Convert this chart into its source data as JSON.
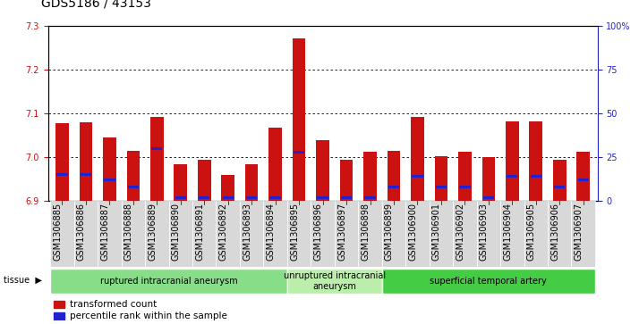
{
  "title": "GDS5186 / 43153",
  "samples": [
    "GSM1306885",
    "GSM1306886",
    "GSM1306887",
    "GSM1306888",
    "GSM1306889",
    "GSM1306890",
    "GSM1306891",
    "GSM1306892",
    "GSM1306893",
    "GSM1306894",
    "GSM1306895",
    "GSM1306896",
    "GSM1306897",
    "GSM1306898",
    "GSM1306899",
    "GSM1306900",
    "GSM1306901",
    "GSM1306902",
    "GSM1306903",
    "GSM1306904",
    "GSM1306905",
    "GSM1306906",
    "GSM1306907"
  ],
  "red_values": [
    7.078,
    7.08,
    7.045,
    7.015,
    7.092,
    6.983,
    6.995,
    6.96,
    6.983,
    7.068,
    7.272,
    7.038,
    6.994,
    7.012,
    7.015,
    7.092,
    7.002,
    7.012,
    7.0,
    7.082,
    7.082,
    6.993,
    7.013
  ],
  "percentile_values": [
    15,
    15,
    12,
    8,
    30,
    2,
    2,
    2,
    2,
    2,
    28,
    2,
    2,
    2,
    8,
    14,
    8,
    8,
    2,
    14,
    14,
    8,
    12
  ],
  "y_min": 6.9,
  "y_max": 7.3,
  "y_ticks": [
    6.9,
    7.0,
    7.1,
    7.2,
    7.3
  ],
  "right_y_ticks": [
    0,
    25,
    50,
    75,
    100
  ],
  "right_y_labels": [
    "0",
    "25",
    "50",
    "75",
    "100%"
  ],
  "bar_color": "#cc1111",
  "blue_color": "#2222cc",
  "tissue_groups": [
    {
      "label": "ruptured intracranial aneurysm",
      "start": 0,
      "end": 10,
      "color": "#88dd88"
    },
    {
      "label": "unruptured intracranial\naneurysm",
      "start": 10,
      "end": 14,
      "color": "#bbeeaa"
    },
    {
      "label": "superficial temporal artery",
      "start": 14,
      "end": 23,
      "color": "#44cc44"
    }
  ],
  "legend_items": [
    {
      "label": "transformed count",
      "color": "#cc1111"
    },
    {
      "label": "percentile rank within the sample",
      "color": "#2222cc"
    }
  ],
  "background_color": "#ffffff",
  "plot_bg_color": "#ffffff",
  "xtick_bg_color": "#d8d8d8",
  "title_fontsize": 10,
  "tick_fontsize": 7,
  "bar_width": 0.55
}
